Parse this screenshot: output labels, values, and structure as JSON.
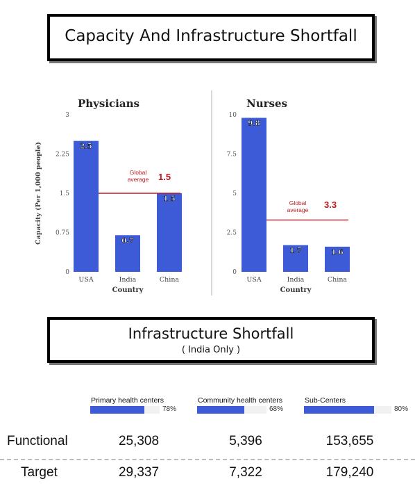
{
  "header": {
    "title": "Capacity And Infrastructure Shortfall"
  },
  "chart_data": [
    {
      "type": "bar",
      "title": "Physicians",
      "xlabel": "Country",
      "ylabel": "Capacity (Per 1,000 people)",
      "categories": [
        "USA",
        "India",
        "China"
      ],
      "values": [
        2.5,
        0.7,
        1.5
      ],
      "value_labels": [
        "2.5",
        "0.7",
        "1.5"
      ],
      "ylim": [
        0,
        3
      ],
      "yticks": [
        "0",
        "0.75",
        "1.5",
        "2.25",
        "3"
      ],
      "bar_color": "#3d5bd6",
      "reference_line": {
        "label_line1": "Global",
        "label_line2": "average",
        "value": 1.5,
        "value_label": "1.5",
        "color": "#c0161f"
      }
    },
    {
      "type": "bar",
      "title": "Nurses",
      "xlabel": "Country",
      "ylabel": "",
      "categories": [
        "USA",
        "India",
        "China"
      ],
      "values": [
        9.8,
        1.7,
        1.6
      ],
      "value_labels": [
        "9.8",
        "1.7",
        "1.6"
      ],
      "ylim": [
        0,
        10
      ],
      "yticks": [
        "0",
        "2.5",
        "5",
        "7.5",
        "10"
      ],
      "bar_color": "#3d5bd6",
      "reference_line": {
        "label_line1": "Global",
        "label_line2": "average",
        "value": 3.3,
        "value_label": "3.3",
        "color": "#c0161f"
      }
    }
  ],
  "infrastructure": {
    "title": "Infrastructure Shortfall",
    "subtitle": "( India Only )",
    "columns": [
      {
        "label": "Primary health centers",
        "percent": 78,
        "percent_label": "78%",
        "functional": "25,308",
        "target": "29,337"
      },
      {
        "label": "Community health centers",
        "percent": 68,
        "percent_label": "68%",
        "functional": "5,396",
        "target": "7,322"
      },
      {
        "label": "Sub-Centers",
        "percent": 80,
        "percent_label": "80%",
        "functional": "153,655",
        "target": "179,240"
      }
    ],
    "rows": {
      "functional_label": "Functional",
      "target_label": "Target"
    }
  }
}
